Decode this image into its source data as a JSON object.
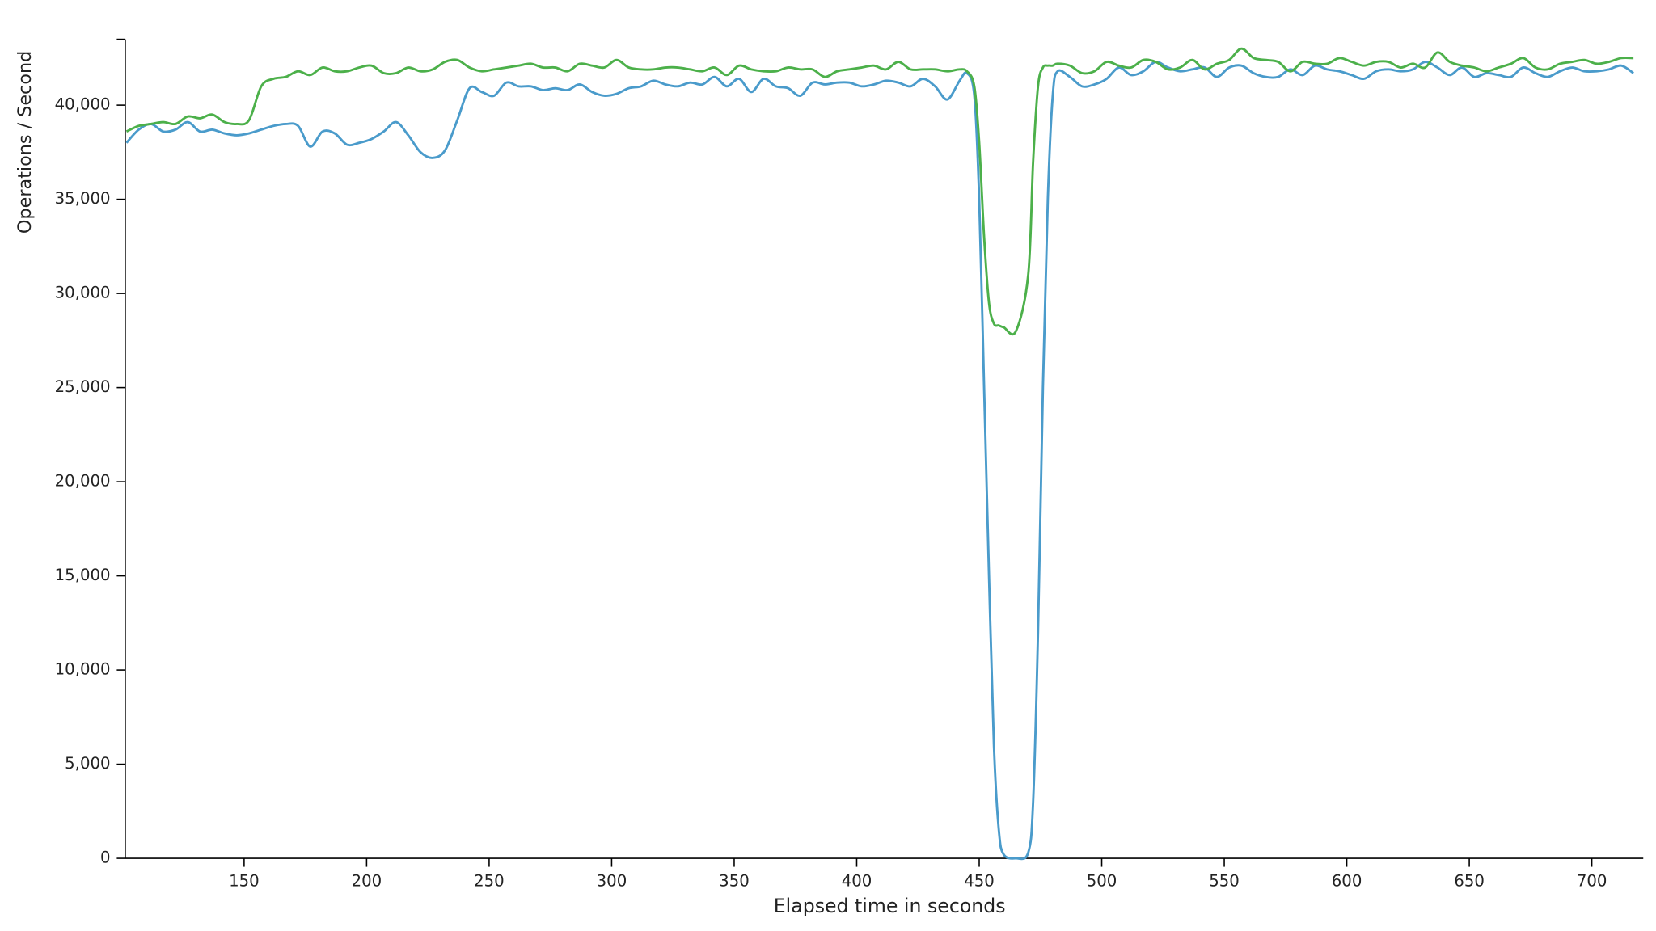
{
  "chart_data": {
    "type": "line",
    "x_label": "Elapsed time in seconds",
    "y_label": "Operations / Second",
    "x": [
      102,
      107,
      112,
      117,
      122,
      127,
      132,
      137,
      142,
      147,
      152,
      157,
      162,
      167,
      172,
      177,
      182,
      187,
      192,
      197,
      202,
      207,
      212,
      217,
      222,
      227,
      232,
      237,
      242,
      247,
      252,
      257,
      262,
      267,
      272,
      277,
      282,
      287,
      292,
      297,
      302,
      307,
      312,
      317,
      322,
      327,
      332,
      337,
      342,
      347,
      352,
      357,
      362,
      367,
      372,
      377,
      382,
      387,
      392,
      397,
      402,
      407,
      412,
      417,
      422,
      427,
      432,
      437,
      442,
      445,
      448,
      450,
      452,
      454,
      456,
      458,
      460,
      465,
      470,
      472,
      474,
      476,
      478,
      480,
      482,
      487,
      492,
      497,
      502,
      507,
      512,
      517,
      522,
      527,
      532,
      537,
      542,
      547,
      552,
      557,
      562,
      567,
      572,
      577,
      582,
      587,
      592,
      597,
      602,
      607,
      612,
      617,
      622,
      627,
      632,
      637,
      642,
      647,
      652,
      657,
      662,
      667,
      672,
      677,
      682,
      687,
      692,
      697,
      702,
      707,
      712,
      717
    ],
    "series": [
      {
        "color": "#4a9bcb",
        "values": [
          38000,
          38700,
          39000,
          38600,
          38700,
          39100,
          38600,
          38700,
          38500,
          38400,
          38500,
          38700,
          38900,
          39000,
          38900,
          37800,
          38600,
          38500,
          37900,
          38000,
          38200,
          38600,
          39100,
          38400,
          37500,
          37200,
          37600,
          39200,
          40900,
          40700,
          40500,
          41200,
          41000,
          41000,
          40800,
          40900,
          40800,
          41100,
          40700,
          40500,
          40600,
          40900,
          41000,
          41300,
          41100,
          41000,
          41200,
          41100,
          41500,
          41000,
          41400,
          40700,
          41400,
          41000,
          40900,
          40500,
          41200,
          41100,
          41200,
          41200,
          41000,
          41100,
          41300,
          41200,
          41000,
          41400,
          41000,
          40300,
          41300,
          41700,
          40500,
          35000,
          25000,
          15000,
          6000,
          1500,
          200,
          0,
          300,
          3000,
          12000,
          25000,
          35000,
          40500,
          41800,
          41500,
          41000,
          41100,
          41400,
          42000,
          41600,
          41800,
          42300,
          42000,
          41800,
          41900,
          42000,
          41500,
          42000,
          42100,
          41700,
          41500,
          41500,
          41900,
          41600,
          42100,
          41900,
          41800,
          41600,
          41400,
          41800,
          41900,
          41800,
          41900,
          42300,
          42000,
          41600,
          42000,
          41500,
          41700,
          41600,
          41500,
          42000,
          41700,
          41500,
          41800,
          42000,
          41800,
          41800,
          41900,
          42100,
          41700
        ]
      },
      {
        "color": "#4cb04a",
        "values": [
          38600,
          38900,
          39000,
          39100,
          39000,
          39400,
          39300,
          39500,
          39100,
          39000,
          39200,
          41000,
          41400,
          41500,
          41800,
          41600,
          42000,
          41800,
          41800,
          42000,
          42100,
          41700,
          41700,
          42000,
          41800,
          41900,
          42300,
          42400,
          42000,
          41800,
          41900,
          42000,
          42100,
          42200,
          42000,
          42000,
          41800,
          42200,
          42100,
          42000,
          42400,
          42000,
          41900,
          41900,
          42000,
          42000,
          41900,
          41800,
          42000,
          41600,
          42100,
          41900,
          41800,
          41800,
          42000,
          41900,
          41900,
          41500,
          41800,
          41900,
          42000,
          42100,
          41900,
          42300,
          41900,
          41900,
          41900,
          41800,
          41900,
          41800,
          41000,
          38000,
          33000,
          29500,
          28400,
          28300,
          28200,
          28000,
          31000,
          37000,
          41000,
          42000,
          42100,
          42100,
          42200,
          42100,
          41700,
          41800,
          42300,
          42100,
          42000,
          42400,
          42300,
          41900,
          42000,
          42400,
          41900,
          42200,
          42400,
          43000,
          42500,
          42400,
          42300,
          41800,
          42300,
          42200,
          42200,
          42500,
          42300,
          42100,
          42300,
          42300,
          42000,
          42200,
          42000,
          42800,
          42300,
          42100,
          42000,
          41800,
          42000,
          42200,
          42500,
          42000,
          41900,
          42200,
          42300,
          42400,
          42200,
          42300,
          42500,
          42500
        ]
      }
    ],
    "xlim": [
      101.5,
      721
    ],
    "ylim": [
      0,
      43500
    ],
    "xticks": [
      150,
      200,
      250,
      300,
      350,
      400,
      450,
      500,
      550,
      600,
      650,
      700
    ],
    "yticks": [
      0,
      {
        "value": 5000,
        "label": "5,000"
      },
      {
        "value": 10000,
        "label": "10,000"
      },
      {
        "value": 15000,
        "label": "15,000"
      },
      {
        "value": 20000,
        "label": "20,000"
      },
      {
        "value": 25000,
        "label": "25,000"
      },
      {
        "value": 30000,
        "label": "30,000"
      },
      {
        "value": 35000,
        "label": "35,000"
      },
      {
        "value": 40000,
        "label": "40,000"
      }
    ],
    "grid": false
  }
}
